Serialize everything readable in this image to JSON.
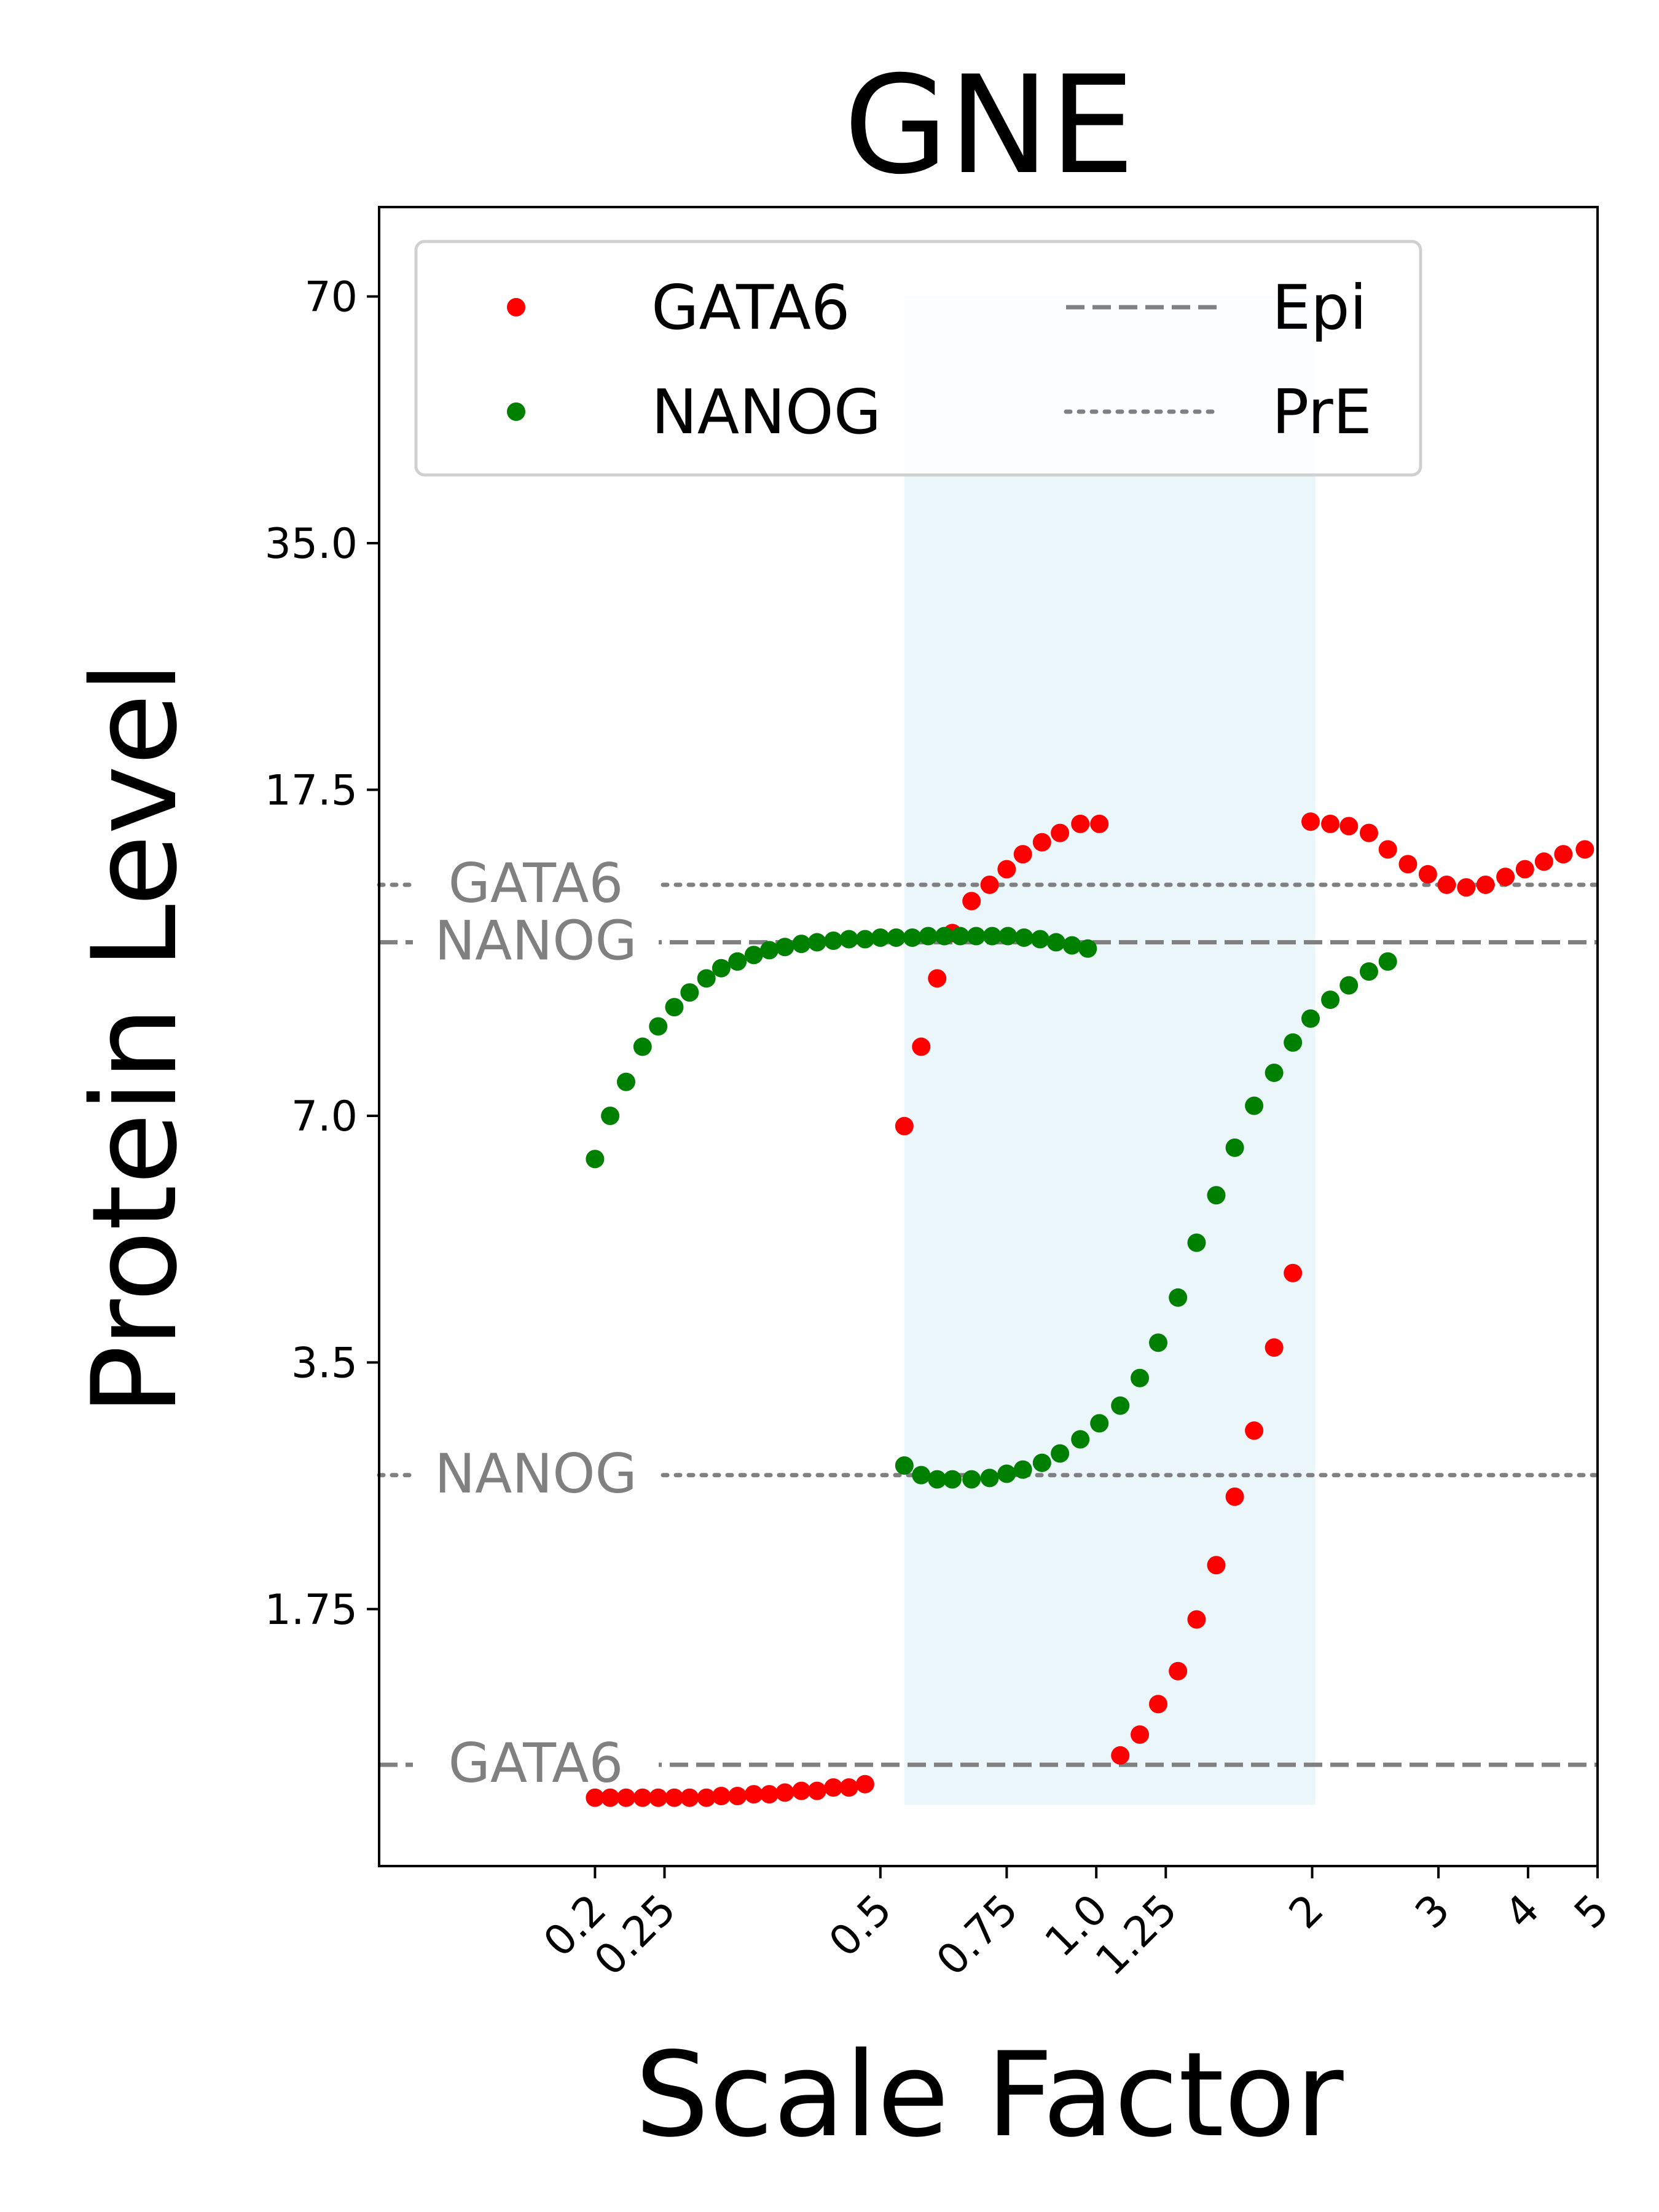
{
  "chart_data": {
    "type": "scatter",
    "title": "GNE",
    "xlabel": "Scale Factor",
    "ylabel": "Protein Level",
    "x_scale": "log",
    "y_scale": "log",
    "xlim": [
      0.1,
      5.0
    ],
    "ylim": [
      0.85,
      90
    ],
    "x_ticks": [
      {
        "value": 0.2,
        "label": "0.2"
      },
      {
        "value": 0.25,
        "label": "0.25"
      },
      {
        "value": 0.5,
        "label": "0.5"
      },
      {
        "value": 0.75,
        "label": "0.75"
      },
      {
        "value": 1.0,
        "label": "1.0"
      },
      {
        "value": 1.25,
        "label": "1.25"
      },
      {
        "value": 2,
        "label": "2"
      },
      {
        "value": 3,
        "label": "3"
      },
      {
        "value": 4,
        "label": "4"
      },
      {
        "value": 5,
        "label": "5"
      }
    ],
    "y_ticks": [
      {
        "value": 1.75,
        "label": "1.75"
      },
      {
        "value": 3.5,
        "label": "3.5"
      },
      {
        "value": 7.0,
        "label": "7.0"
      },
      {
        "value": 17.5,
        "label": "17.5"
      },
      {
        "value": 35.0,
        "label": "35.0"
      },
      {
        "value": 70,
        "label": "70"
      }
    ],
    "shaded_region": {
      "x": [
        0.54,
        2.02
      ],
      "y": [
        1.01,
        70
      ],
      "color": "#e8f5fa"
    },
    "legend": {
      "placement": "top-left",
      "columns": 2,
      "entries": [
        {
          "label": "GATA6",
          "kind": "dot",
          "color": "#ff0000"
        },
        {
          "label": "NANOG",
          "kind": "dot",
          "color": "#008000"
        },
        {
          "label": "Epi",
          "kind": "dashed",
          "color": "#808080"
        },
        {
          "label": "PrE",
          "kind": "dotted",
          "color": "#808080"
        }
      ]
    },
    "reference_lines": [
      {
        "label": "GATA6",
        "style": "dotted",
        "y": 13.4
      },
      {
        "label": "NANOG",
        "style": "dashed",
        "y": 11.4
      },
      {
        "label": "NANOG",
        "style": "dotted",
        "y": 2.55
      },
      {
        "label": "GATA6",
        "style": "dashed",
        "y": 1.13
      }
    ],
    "series": [
      {
        "name": "GATA6",
        "color": "#ff0000",
        "points": [
          [
            0.2,
            1.03
          ],
          [
            0.21,
            1.03
          ],
          [
            0.221,
            1.03
          ],
          [
            0.233,
            1.03
          ],
          [
            0.245,
            1.03
          ],
          [
            0.258,
            1.03
          ],
          [
            0.271,
            1.03
          ],
          [
            0.286,
            1.03
          ],
          [
            0.3,
            1.035
          ],
          [
            0.316,
            1.035
          ],
          [
            0.333,
            1.04
          ],
          [
            0.35,
            1.04
          ],
          [
            0.368,
            1.045
          ],
          [
            0.388,
            1.05
          ],
          [
            0.408,
            1.05
          ],
          [
            0.43,
            1.06
          ],
          [
            0.452,
            1.06
          ],
          [
            0.476,
            1.07
          ],
          [
            0.54,
            6.8
          ],
          [
            0.57,
            8.5
          ],
          [
            0.6,
            10.3
          ],
          [
            0.63,
            11.7
          ],
          [
            0.67,
            12.8
          ],
          [
            0.71,
            13.4
          ],
          [
            0.75,
            14.0
          ],
          [
            0.79,
            14.6
          ],
          [
            0.84,
            15.1
          ],
          [
            0.89,
            15.5
          ],
          [
            0.95,
            15.9
          ],
          [
            1.01,
            15.9
          ],
          [
            1.08,
            1.16
          ],
          [
            1.15,
            1.23
          ],
          [
            1.22,
            1.34
          ],
          [
            1.3,
            1.47
          ],
          [
            1.38,
            1.7
          ],
          [
            1.47,
            1.98
          ],
          [
            1.56,
            2.4
          ],
          [
            1.66,
            2.89
          ],
          [
            1.77,
            3.65
          ],
          [
            1.88,
            4.5
          ],
          [
            1.99,
            16.0
          ],
          [
            2.12,
            15.9
          ],
          [
            2.25,
            15.8
          ],
          [
            2.4,
            15.5
          ],
          [
            2.55,
            14.8
          ],
          [
            2.72,
            14.2
          ],
          [
            2.9,
            13.8
          ],
          [
            3.08,
            13.4
          ],
          [
            3.28,
            13.3
          ],
          [
            3.49,
            13.4
          ],
          [
            3.72,
            13.7
          ],
          [
            3.96,
            14.0
          ],
          [
            4.21,
            14.3
          ],
          [
            4.48,
            14.6
          ],
          [
            4.8,
            14.8
          ]
        ]
      },
      {
        "name": "NANOG",
        "color": "#008000",
        "points": [
          [
            0.2,
            6.2
          ],
          [
            0.21,
            7.0
          ],
          [
            0.221,
            7.7
          ],
          [
            0.233,
            8.5
          ],
          [
            0.245,
            9.0
          ],
          [
            0.258,
            9.5
          ],
          [
            0.271,
            9.9
          ],
          [
            0.286,
            10.3
          ],
          [
            0.3,
            10.6
          ],
          [
            0.316,
            10.8
          ],
          [
            0.333,
            11.0
          ],
          [
            0.35,
            11.15
          ],
          [
            0.368,
            11.25
          ],
          [
            0.388,
            11.35
          ],
          [
            0.408,
            11.4
          ],
          [
            0.43,
            11.45
          ],
          [
            0.452,
            11.5
          ],
          [
            0.476,
            11.5
          ],
          [
            0.5,
            11.55
          ],
          [
            0.526,
            11.55
          ],
          [
            0.554,
            11.55
          ],
          [
            0.583,
            11.6
          ],
          [
            0.614,
            11.6
          ],
          [
            0.646,
            11.6
          ],
          [
            0.68,
            11.6
          ],
          [
            0.716,
            11.6
          ],
          [
            0.753,
            11.6
          ],
          [
            0.793,
            11.55
          ],
          [
            0.835,
            11.5
          ],
          [
            0.879,
            11.4
          ],
          [
            0.925,
            11.3
          ],
          [
            0.973,
            11.2
          ],
          [
            0.54,
            2.62
          ],
          [
            0.57,
            2.55
          ],
          [
            0.6,
            2.52
          ],
          [
            0.63,
            2.52
          ],
          [
            0.67,
            2.52
          ],
          [
            0.71,
            2.53
          ],
          [
            0.75,
            2.56
          ],
          [
            0.79,
            2.59
          ],
          [
            0.84,
            2.64
          ],
          [
            0.89,
            2.71
          ],
          [
            0.95,
            2.82
          ],
          [
            1.01,
            2.95
          ],
          [
            1.08,
            3.1
          ],
          [
            1.15,
            3.35
          ],
          [
            1.22,
            3.7
          ],
          [
            1.3,
            4.2
          ],
          [
            1.38,
            4.9
          ],
          [
            1.47,
            5.6
          ],
          [
            1.56,
            6.4
          ],
          [
            1.66,
            7.2
          ],
          [
            1.77,
            7.9
          ],
          [
            1.88,
            8.6
          ],
          [
            1.99,
            9.2
          ],
          [
            2.12,
            9.7
          ],
          [
            2.25,
            10.1
          ],
          [
            2.4,
            10.5
          ],
          [
            2.55,
            10.8
          ]
        ]
      }
    ]
  }
}
